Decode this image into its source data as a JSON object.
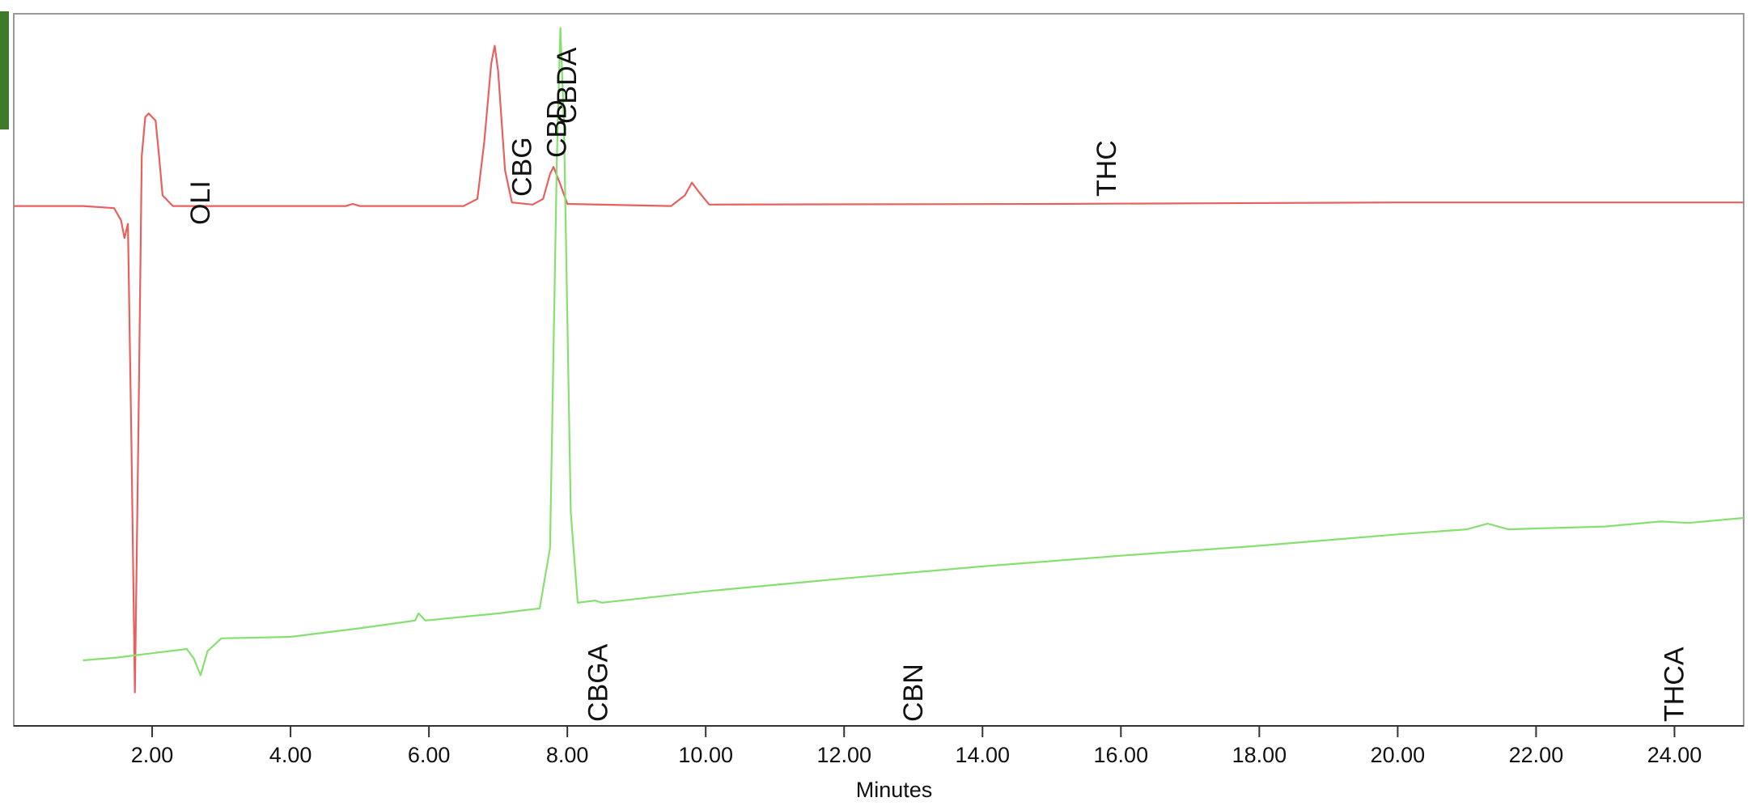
{
  "chart_data": {
    "type": "line",
    "x_label": "Minutes",
    "xlim": [
      0,
      25
    ],
    "ylim": [
      0,
      100
    ],
    "xticks": [
      {
        "value": 2,
        "label": "2.00"
      },
      {
        "value": 4,
        "label": "4.00"
      },
      {
        "value": 6,
        "label": "6.00"
      },
      {
        "value": 8,
        "label": "8.00"
      },
      {
        "value": 10,
        "label": "10.00"
      },
      {
        "value": 12,
        "label": "12.00"
      },
      {
        "value": 14,
        "label": "14.00"
      },
      {
        "value": 16,
        "label": "16.00"
      },
      {
        "value": 18,
        "label": "18.00"
      },
      {
        "value": 20,
        "label": "20.00"
      },
      {
        "value": 22,
        "label": "22.00"
      },
      {
        "value": 24,
        "label": "24.00"
      }
    ],
    "series": [
      {
        "color": "#e8605e",
        "x": [
          0,
          1.0,
          1.45,
          1.55,
          1.6,
          1.65,
          1.7,
          1.75,
          1.8,
          1.85,
          1.9,
          1.95,
          2.0,
          2.05,
          2.1,
          2.15,
          2.3,
          3.0,
          4.8,
          4.9,
          5.0,
          6.5,
          6.7,
          6.8,
          6.9,
          6.95,
          7.0,
          7.1,
          7.2,
          7.5,
          7.65,
          7.75,
          7.8,
          7.9,
          8.0,
          9.5,
          9.7,
          9.8,
          9.9,
          10.05,
          15,
          20,
          25
        ],
        "values": [
          73,
          73,
          72.7,
          71,
          68.5,
          70.5,
          40,
          4.7,
          40,
          80,
          85.5,
          86,
          85.5,
          85,
          80,
          74.5,
          73,
          73,
          73,
          73.3,
          73,
          73,
          74,
          82,
          93,
          95.5,
          92,
          78,
          73.5,
          73.2,
          74,
          77.5,
          78.5,
          76,
          73.3,
          73,
          74.5,
          76.3,
          75,
          73.2,
          73.3,
          73.5,
          73.5
        ]
      },
      {
        "color": "#86e070",
        "x": [
          1.0,
          1.5,
          2.0,
          2.5,
          2.6,
          2.7,
          2.8,
          3.0,
          4.0,
          5.0,
          5.8,
          5.85,
          5.95,
          7.0,
          7.6,
          7.75,
          7.85,
          7.9,
          7.95,
          8.05,
          8.15,
          8.4,
          8.5,
          10,
          12,
          14,
          16,
          18,
          20,
          21.0,
          21.3,
          21.6,
          23,
          23.8,
          24.2,
          25
        ],
        "values": [
          9.2,
          9.6,
          10.2,
          10.8,
          9.5,
          7.1,
          10.5,
          12.3,
          12.5,
          13.7,
          14.8,
          15.8,
          14.8,
          15.8,
          16.5,
          25,
          80,
          98,
          85,
          30,
          17.3,
          17.6,
          17.3,
          18.9,
          20.7,
          22.4,
          23.9,
          25.3,
          26.9,
          27.6,
          28.4,
          27.6,
          28,
          28.7,
          28.5,
          29.2
        ]
      }
    ],
    "annotations": [
      {
        "text": "OLI",
        "x": 2.7
      },
      {
        "text": "CBG",
        "x": 7.35
      },
      {
        "text": "CBD",
        "x": 7.85
      },
      {
        "text": "CBDA",
        "x": 8.0
      },
      {
        "text": "THC",
        "x": 15.8
      },
      {
        "text": "CBGA",
        "x": 8.45
      },
      {
        "text": "CBN",
        "x": 13.0
      },
      {
        "text": "THCA",
        "x": 24.0
      }
    ]
  }
}
